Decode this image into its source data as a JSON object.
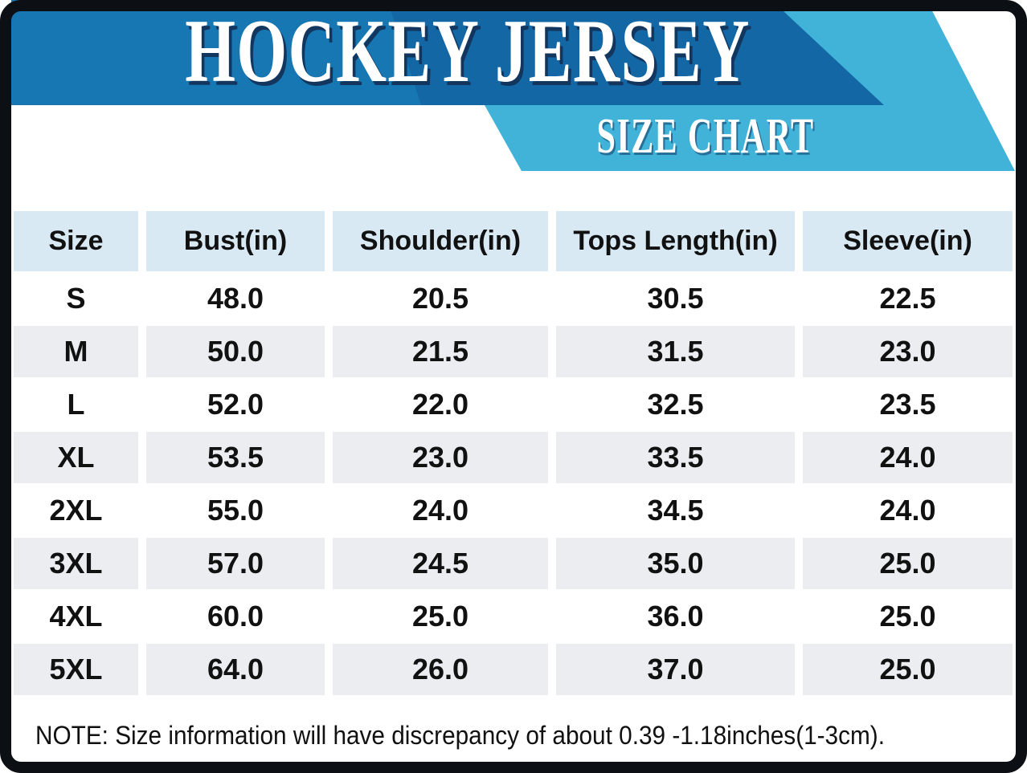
{
  "header": {
    "title": "HOCKEY JERSEY",
    "subtitle": "SIZE CHART"
  },
  "table": {
    "columns": [
      "Size",
      "Bust(in)",
      "Shoulder(in)",
      "Tops Length(in)",
      "Sleeve(in)"
    ],
    "rows": [
      [
        "S",
        "48.0",
        "20.5",
        "30.5",
        "22.5"
      ],
      [
        "M",
        "50.0",
        "21.5",
        "31.5",
        "23.0"
      ],
      [
        "L",
        "52.0",
        "22.0",
        "32.5",
        "23.5"
      ],
      [
        "XL",
        "53.5",
        "23.0",
        "33.5",
        "24.0"
      ],
      [
        "2XL",
        "55.0",
        "24.0",
        "34.5",
        "24.0"
      ],
      [
        "3XL",
        "57.0",
        "24.5",
        "35.0",
        "25.0"
      ],
      [
        "4XL",
        "60.0",
        "25.0",
        "36.0",
        "25.0"
      ],
      [
        "5XL",
        "64.0",
        "26.0",
        "37.0",
        "25.0"
      ]
    ]
  },
  "note": {
    "text": "NOTE: Size information will have discrepancy of about 0.39 -1.18inches(1-3cm)."
  },
  "colors": {
    "band_medium": "#1777b2",
    "band_dark": "#1267a4",
    "band_light": "#41b3d9",
    "title_text": "#ffffff",
    "title_shadow": "#12365e",
    "table_header_bg": "#d8e9f4",
    "row_alt_bg": "#ebedf0",
    "text": "#111111",
    "frame": "#0c0f13"
  },
  "chart_data": {
    "type": "table",
    "title": "HOCKEY JERSEY",
    "subtitle": "SIZE CHART",
    "columns": [
      "Size",
      "Bust(in)",
      "Shoulder(in)",
      "Tops Length(in)",
      "Sleeve(in)"
    ],
    "rows": [
      {
        "size": "S",
        "bust_in": 48.0,
        "shoulder_in": 20.5,
        "tops_length_in": 30.5,
        "sleeve_in": 22.5
      },
      {
        "size": "M",
        "bust_in": 50.0,
        "shoulder_in": 21.5,
        "tops_length_in": 31.5,
        "sleeve_in": 23.0
      },
      {
        "size": "L",
        "bust_in": 52.0,
        "shoulder_in": 22.0,
        "tops_length_in": 32.5,
        "sleeve_in": 23.5
      },
      {
        "size": "XL",
        "bust_in": 53.5,
        "shoulder_in": 23.0,
        "tops_length_in": 33.5,
        "sleeve_in": 24.0
      },
      {
        "size": "2XL",
        "bust_in": 55.0,
        "shoulder_in": 24.0,
        "tops_length_in": 34.5,
        "sleeve_in": 24.0
      },
      {
        "size": "3XL",
        "bust_in": 57.0,
        "shoulder_in": 24.5,
        "tops_length_in": 35.0,
        "sleeve_in": 25.0
      },
      {
        "size": "4XL",
        "bust_in": 60.0,
        "shoulder_in": 25.0,
        "tops_length_in": 36.0,
        "sleeve_in": 25.0
      },
      {
        "size": "5XL",
        "bust_in": 64.0,
        "shoulder_in": 26.0,
        "tops_length_in": 37.0,
        "sleeve_in": 25.0
      }
    ],
    "note": "NOTE: Size information will have discrepancy of about 0.39 -1.18inches(1-3cm)."
  }
}
